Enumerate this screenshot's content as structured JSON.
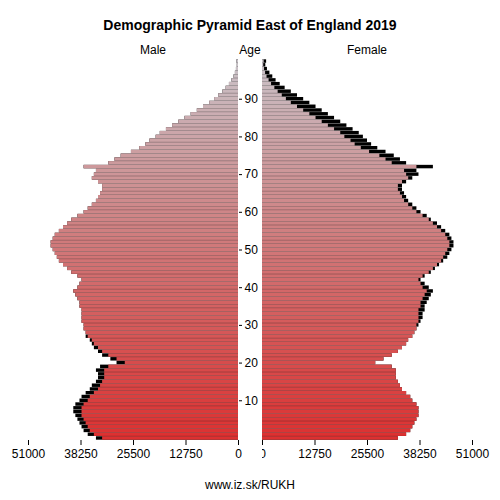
{
  "chart_data": {
    "type": "bar",
    "orientation": "horizontal",
    "title": "Demographic Pyramid East of England 2019",
    "ylabel": "Age",
    "caption": "www.iz.sk/RUKH",
    "categories": [
      0,
      1,
      2,
      3,
      4,
      5,
      6,
      7,
      8,
      9,
      10,
      11,
      12,
      13,
      14,
      15,
      16,
      17,
      18,
      19,
      20,
      21,
      22,
      23,
      24,
      25,
      26,
      27,
      28,
      29,
      30,
      31,
      32,
      33,
      34,
      35,
      36,
      37,
      38,
      39,
      40,
      41,
      42,
      43,
      44,
      45,
      46,
      47,
      48,
      49,
      50,
      51,
      52,
      53,
      54,
      55,
      56,
      57,
      58,
      59,
      60,
      61,
      62,
      63,
      64,
      65,
      66,
      67,
      68,
      69,
      70,
      71,
      72,
      73,
      74,
      75,
      76,
      77,
      78,
      79,
      80,
      81,
      82,
      83,
      84,
      85,
      86,
      87,
      88,
      89,
      90,
      91,
      92,
      93,
      94,
      95,
      96,
      97,
      98,
      99,
      100
    ],
    "series": [
      {
        "name": "Male",
        "values": [
          34500,
          36500,
          37500,
          38000,
          38500,
          39000,
          39500,
          40000,
          40000,
          39500,
          38500,
          38000,
          37000,
          36000,
          35500,
          34500,
          34000,
          34000,
          34500,
          33500,
          29500,
          31000,
          33000,
          34000,
          35000,
          35500,
          36000,
          37000,
          37000,
          37500,
          37500,
          38000,
          38000,
          38000,
          38000,
          38500,
          38500,
          39000,
          39500,
          40000,
          39000,
          38500,
          38000,
          39000,
          40500,
          41500,
          42500,
          43500,
          44000,
          44500,
          45000,
          45500,
          45500,
          45000,
          44500,
          43500,
          42500,
          41500,
          40500,
          39000,
          37500,
          36500,
          35500,
          34500,
          34000,
          33500,
          33000,
          33000,
          34000,
          35500,
          35000,
          34500,
          37500,
          31500,
          30000,
          28500,
          26000,
          24000,
          22500,
          21500,
          20000,
          19000,
          17500,
          16000,
          14500,
          13000,
          11500,
          10000,
          8500,
          7000,
          5800,
          4800,
          3800,
          3000,
          2200,
          1600,
          1100,
          750,
          500,
          300,
          400
        ]
      },
      {
        "name": "Female",
        "values": [
          33000,
          35000,
          36000,
          36500,
          37000,
          37500,
          38000,
          38000,
          38000,
          37500,
          36500,
          36000,
          35000,
          34000,
          33500,
          33000,
          32500,
          32500,
          32500,
          31500,
          27500,
          29500,
          31500,
          33000,
          34000,
          35000,
          35500,
          36500,
          37000,
          37500,
          38000,
          38500,
          39000,
          39000,
          39500,
          39500,
          40000,
          40500,
          41000,
          41500,
          40500,
          39500,
          38500,
          39500,
          41000,
          42000,
          43000,
          44000,
          45000,
          45500,
          46000,
          46500,
          46500,
          46000,
          45500,
          44500,
          43500,
          42500,
          41000,
          40000,
          38500,
          37500,
          36500,
          35500,
          35000,
          34500,
          34000,
          34000,
          35000,
          36500,
          38000,
          37500,
          41500,
          35000,
          33500,
          32000,
          30000,
          28000,
          26500,
          25500,
          24500,
          23500,
          22000,
          20500,
          19000,
          17500,
          16000,
          14500,
          13000,
          11500,
          10000,
          8500,
          7000,
          5500,
          4300,
          3300,
          2500,
          1800,
          1200,
          800,
          1000
        ]
      }
    ],
    "xlim": [
      0,
      51000
    ],
    "xticks": [
      0,
      12750,
      25500,
      38250,
      51000
    ],
    "yticks": [
      10,
      20,
      30,
      40,
      50,
      60,
      70,
      80,
      90
    ]
  }
}
